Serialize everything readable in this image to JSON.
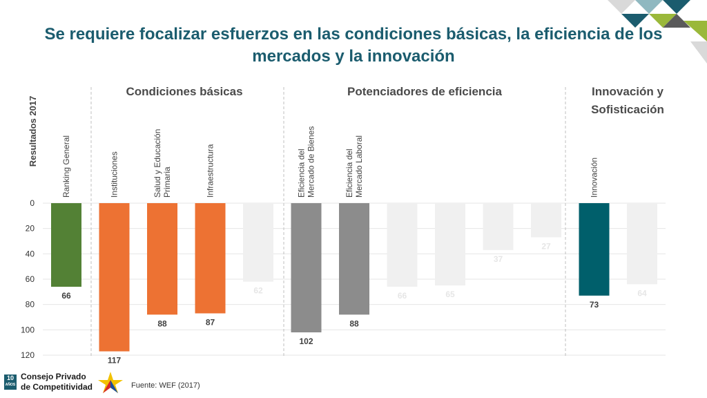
{
  "title": "Se requiere focalizar esfuerzos en las condiciones básicas, la eficiencia de los mercados y la innovación",
  "footer": {
    "badge_top": "10",
    "badge_bottom": "AÑOS",
    "org_line1": "Consejo Privado",
    "org_line2": "de Competitividad",
    "source": "Fuente: WEF (2017)"
  },
  "colors": {
    "title": "#1b5c6e",
    "green": "#538135",
    "orange": "#ed7233",
    "gray": "#8c8c8c",
    "teal": "#005f6b",
    "faded": "#f0f0f0"
  },
  "chart_data": {
    "type": "bar",
    "orientation": "inverted-y",
    "ylabel": "Resultados 2017",
    "ylim": [
      0,
      120
    ],
    "yticks": [
      0,
      20,
      40,
      60,
      80,
      100,
      120
    ],
    "sections": [
      {
        "label_lines": [
          "Condiciones básicas"
        ]
      },
      {
        "label_lines": [
          "Potenciadores de eficiencia"
        ]
      },
      {
        "label_lines": [
          "Innovación y",
          "Sofisticación"
        ]
      }
    ],
    "bars": [
      {
        "label_lines": [
          "Ranking General"
        ],
        "value": 66,
        "color": "green",
        "faded": false
      },
      {
        "label_lines": [
          "Instituciones"
        ],
        "value": 117,
        "color": "orange",
        "faded": false
      },
      {
        "label_lines": [
          "Salud y Educación",
          "Primaria"
        ],
        "value": 88,
        "color": "orange",
        "faded": false
      },
      {
        "label_lines": [
          "Infraestructura"
        ],
        "value": 87,
        "color": "orange",
        "faded": false
      },
      {
        "label_lines": [],
        "value": 62,
        "color": "faded",
        "faded": true
      },
      {
        "label_lines": [
          "Eficiencia del",
          "Mercado de Bienes"
        ],
        "value": 102,
        "color": "gray",
        "faded": false
      },
      {
        "label_lines": [
          "Eficiencia del",
          "Mercado Laboral"
        ],
        "value": 88,
        "color": "gray",
        "faded": false
      },
      {
        "label_lines": [],
        "value": 66,
        "color": "faded",
        "faded": true
      },
      {
        "label_lines": [],
        "value": 65,
        "color": "faded",
        "faded": true
      },
      {
        "label_lines": [],
        "value": 37,
        "color": "faded",
        "faded": true
      },
      {
        "label_lines": [],
        "value": 27,
        "color": "faded",
        "faded": true
      },
      {
        "label_lines": [
          "Innovación"
        ],
        "value": 73,
        "color": "teal",
        "faded": false
      },
      {
        "label_lines": [],
        "value": 64,
        "color": "faded",
        "faded": true
      }
    ]
  }
}
